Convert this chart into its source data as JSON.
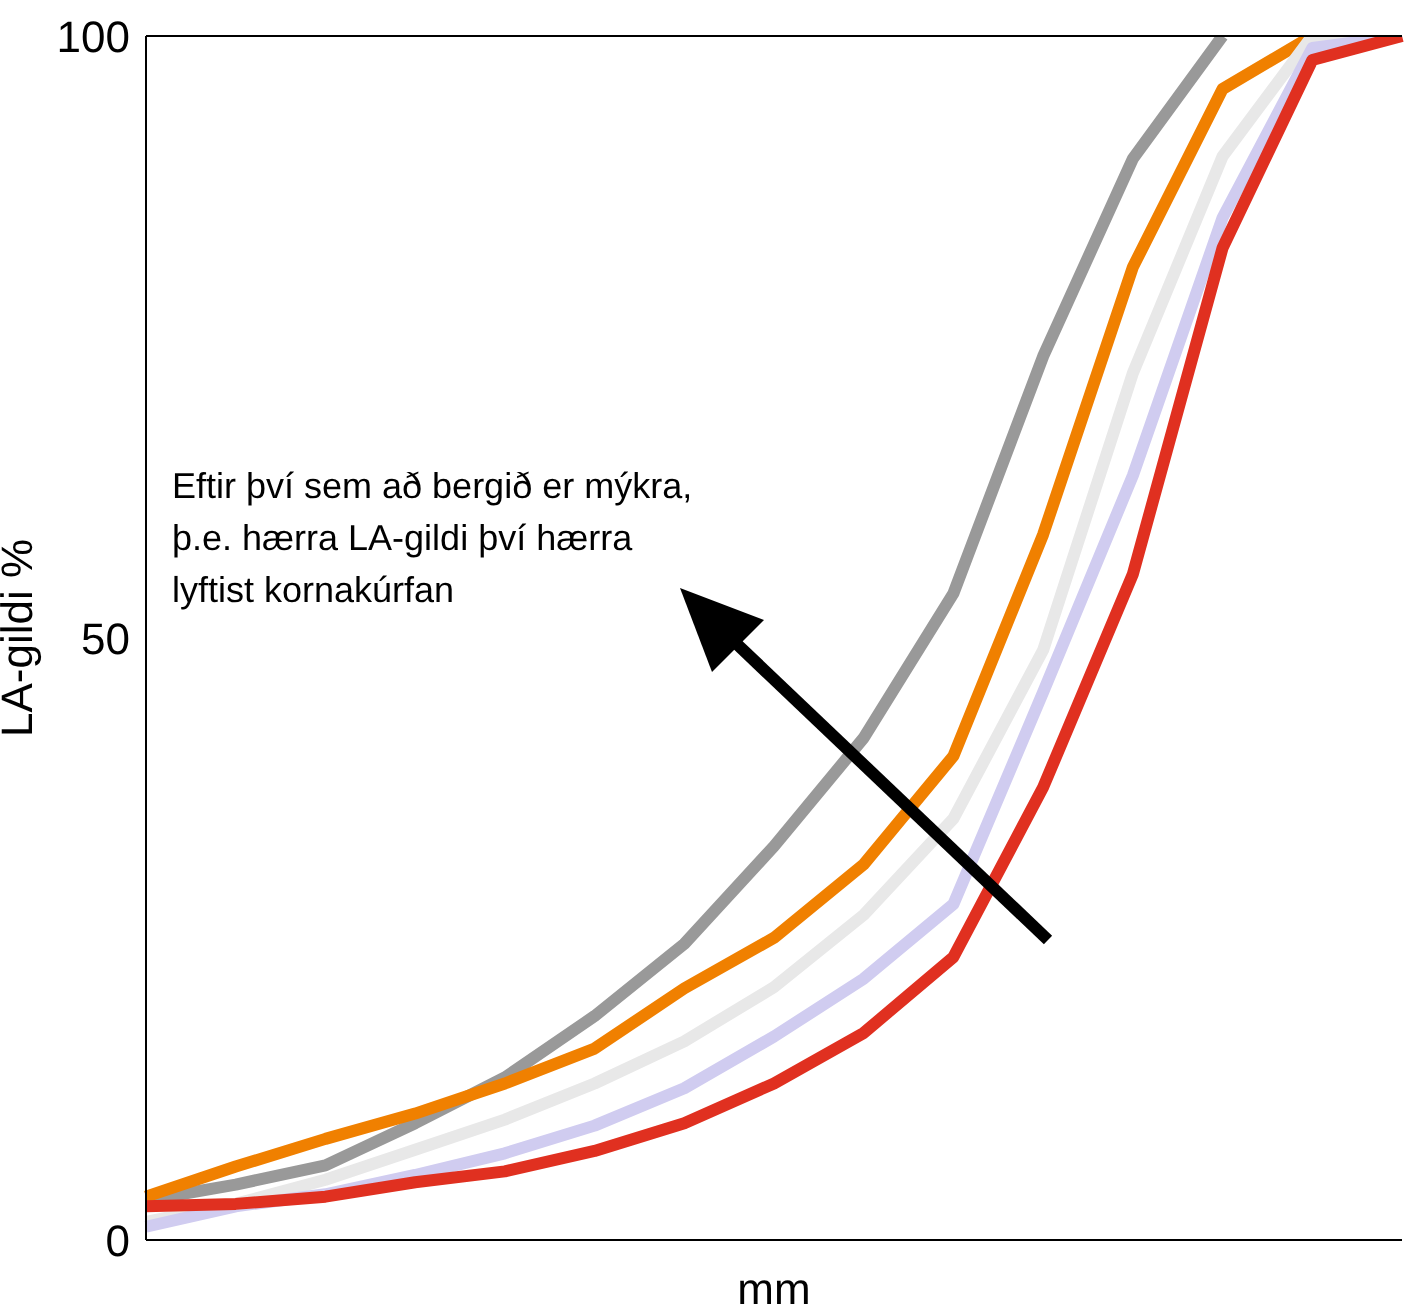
{
  "chart_data": {
    "type": "line",
    "ylabel": "LA-gildi %",
    "xlabel": "mm",
    "categories": [
      null,
      null,
      null,
      null,
      null,
      null,
      null,
      null,
      null,
      null,
      null,
      null,
      null,
      null,
      null
    ],
    "ylim": [
      0,
      100
    ],
    "yticks": [
      0,
      50,
      100
    ],
    "tick_labels": "y",
    "grid": false,
    "legend": false,
    "marker": "none",
    "line_style": "solid",
    "series": [
      {
        "color": "#999999",
        "values": [
          3.3,
          4.6,
          6.2,
          9.7,
          13.5,
          18.6,
          24.6,
          32.7,
          41.7,
          53.7,
          73.4,
          89.8,
          100,
          null,
          null
        ]
      },
      {
        "color": "#f08000",
        "values": [
          3.6,
          6.1,
          8.4,
          10.5,
          13,
          15.9,
          20.9,
          25.1,
          31.2,
          40.2,
          58.6,
          80.8,
          95.6,
          100,
          100
        ]
      },
      {
        "color": "#e8e8e8",
        "values": [
          1.5,
          3,
          5,
          7.5,
          10,
          13,
          16.5,
          21,
          27,
          35,
          49,
          72,
          90,
          100,
          100
        ]
      },
      {
        "color": "#d0ccf0",
        "values": [
          1.1,
          2.8,
          3.8,
          5.4,
          7.2,
          9.5,
          12.6,
          16.9,
          21.7,
          27.9,
          45.5,
          63.5,
          84.9,
          99,
          100
        ]
      },
      {
        "color": "#e03020",
        "values": [
          2.8,
          3,
          3.6,
          4.8,
          5.7,
          7.4,
          9.7,
          13,
          17.2,
          23.5,
          37.6,
          55.3,
          82.4,
          98,
          100
        ]
      }
    ],
    "annotations": [
      "Eftir því sem að bergið er mýkra,\nþ.e. hærra LA-gildi því hærra\nlyftist kornakúrfan"
    ]
  }
}
